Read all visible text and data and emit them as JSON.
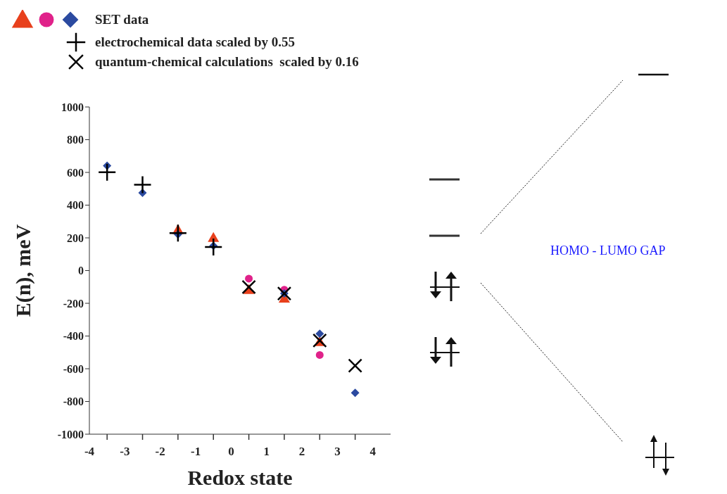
{
  "chart_data": {
    "type": "scatter",
    "xlabel": "Redox state",
    "ylabel": "E(n), meV",
    "xlim": [
      -4,
      4.5
    ],
    "xticks": [
      -4,
      {
        "value": -3.5,
        "label": null
      },
      -3,
      {
        "value": -2.5,
        "label": null
      },
      -2,
      {
        "value": -1.5,
        "label": null
      },
      -1,
      {
        "value": -0.5,
        "label": null
      },
      0,
      {
        "value": 0.5,
        "label": null
      },
      1,
      {
        "value": 1.5,
        "label": null
      },
      2,
      {
        "value": 2.5,
        "label": null
      },
      3,
      {
        "value": 3.5,
        "label": null
      },
      4
    ],
    "ylim": [
      -1000,
      1000
    ],
    "yticks": [
      -1000,
      -800,
      -600,
      -400,
      -200,
      0,
      200,
      400,
      600,
      800,
      1000
    ],
    "grid": false,
    "legend": "top left",
    "series": [
      {
        "color": "#e8401c",
        "marker": "triangle",
        "x": [
          -1.5,
          -0.5,
          0.5,
          1.5,
          2.5
        ],
        "values": [
          249,
          201,
          -117,
          -170,
          -436
        ]
      },
      {
        "color": "#e0228a",
        "marker": "circle",
        "x": [
          0.5,
          1.5,
          2.5
        ],
        "values": [
          -49,
          -117,
          -516
        ]
      },
      {
        "name": "SET data",
        "color": "#2b4aa0",
        "marker": "diamond",
        "x": [
          -3.5,
          -2.5,
          -1.5,
          -0.5,
          0.5,
          1.5,
          2.5,
          3.5
        ],
        "values": [
          641,
          475,
          221,
          152,
          null,
          -140,
          -386,
          -747
        ]
      },
      {
        "name": "electrochemical data scaled by 0.55",
        "color": "#000000",
        "marker": "cross",
        "x": [
          -3.5,
          -2.5,
          -1.5,
          -0.5
        ],
        "values": [
          601,
          525,
          229,
          144
        ]
      },
      {
        "name": "quantum-chemical calculations  scaled by 0.16",
        "color": "#000000",
        "marker": "x",
        "x": [
          0.5,
          1.5,
          2.5,
          3.5
        ],
        "values": [
          -101,
          -140,
          -427,
          -581
        ]
      }
    ],
    "annotations": [
      "HOMO - LUMO GAP"
    ]
  }
}
